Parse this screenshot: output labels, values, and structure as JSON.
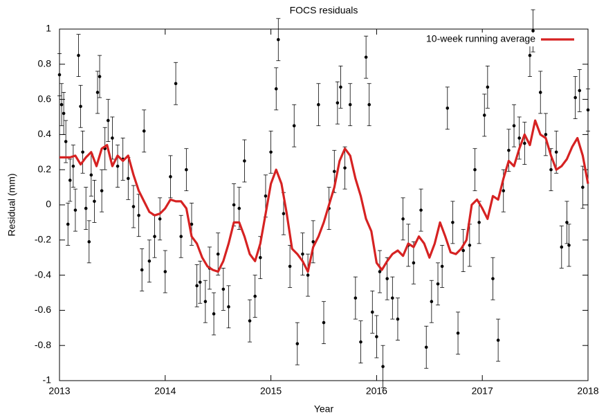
{
  "chart_data": {
    "type": "scatter",
    "title": "FOCS residuals",
    "x_label": "Year",
    "y_label": "Residual (mm)",
    "xlim": [
      2013,
      2018
    ],
    "ylim": [
      -1,
      1
    ],
    "xticks": [
      2013,
      2014,
      2015,
      2016,
      2017,
      2018
    ],
    "yticks": [
      -1,
      -0.8,
      -0.6,
      -0.4,
      -0.2,
      0,
      0.2,
      0.4,
      0.6,
      0.8,
      1
    ],
    "grid": false,
    "legend": "top-right",
    "series": [
      {
        "type": "scatter",
        "color": "#000000",
        "error": 0.12,
        "x": [
          2013.0,
          2013.02,
          2013.04,
          2013.06,
          2013.08,
          2013.1,
          2013.13,
          2013.15,
          2013.18,
          2013.2,
          2013.22,
          2013.25,
          2013.28,
          2013.3,
          2013.33,
          2013.36,
          2013.38,
          2013.4,
          2013.43,
          2013.46,
          2013.5,
          2013.55,
          2013.6,
          2013.65,
          2013.7,
          2013.75,
          2013.78,
          2013.8,
          2013.85,
          2013.9,
          2013.95,
          2014.0,
          2014.05,
          2014.1,
          2014.15,
          2014.2,
          2014.25,
          2014.3,
          2014.33,
          2014.38,
          2014.42,
          2014.46,
          2014.5,
          2014.55,
          2014.6,
          2014.65,
          2014.7,
          2014.75,
          2014.8,
          2014.85,
          2014.9,
          2014.95,
          2015.0,
          2015.05,
          2015.07,
          2015.12,
          2015.18,
          2015.22,
          2015.25,
          2015.3,
          2015.35,
          2015.4,
          2015.45,
          2015.5,
          2015.55,
          2015.6,
          2015.63,
          2015.66,
          2015.7,
          2015.75,
          2015.8,
          2015.85,
          2015.9,
          2015.93,
          2015.96,
          2016.0,
          2016.03,
          2016.06,
          2016.1,
          2016.15,
          2016.2,
          2016.25,
          2016.3,
          2016.35,
          2016.42,
          2016.47,
          2016.52,
          2016.58,
          2016.62,
          2016.67,
          2016.72,
          2016.77,
          2016.82,
          2016.88,
          2016.93,
          2016.97,
          2017.02,
          2017.05,
          2017.1,
          2017.15,
          2017.2,
          2017.25,
          2017.3,
          2017.35,
          2017.4,
          2017.45,
          2017.48,
          2017.55,
          2017.6,
          2017.65,
          2017.7,
          2017.75,
          2017.8,
          2017.82,
          2017.88,
          2017.92,
          2017.95,
          2018.0
        ],
        "values": [
          0.74,
          0.57,
          0.52,
          0.36,
          -0.11,
          0.14,
          0.22,
          -0.03,
          0.85,
          0.56,
          0.3,
          -0.02,
          -0.21,
          0.17,
          0.02,
          0.64,
          0.73,
          0.08,
          0.32,
          0.48,
          0.38,
          0.22,
          0.26,
          0.15,
          -0.01,
          -0.06,
          -0.37,
          0.42,
          -0.32,
          -0.18,
          -0.08,
          -0.38,
          0.16,
          0.69,
          -0.18,
          0.2,
          -0.11,
          -0.46,
          -0.44,
          -0.55,
          -0.36,
          -0.62,
          -0.28,
          -0.48,
          -0.58,
          0.0,
          -0.02,
          0.25,
          -0.66,
          -0.52,
          -0.3,
          0.05,
          0.3,
          0.66,
          0.94,
          -0.05,
          -0.35,
          0.45,
          -0.79,
          -0.28,
          -0.4,
          -0.21,
          0.57,
          -0.67,
          -0.02,
          0.19,
          0.58,
          0.67,
          0.21,
          0.57,
          -0.53,
          -0.78,
          0.84,
          0.57,
          -0.61,
          -0.75,
          -0.38,
          -0.92,
          -0.42,
          -0.53,
          -0.65,
          -0.08,
          -0.23,
          -0.33,
          -0.03,
          -0.81,
          -0.55,
          -0.45,
          -0.35,
          0.55,
          -0.1,
          -0.73,
          -0.26,
          -0.23,
          0.2,
          -0.1,
          0.51,
          0.67,
          -0.42,
          -0.77,
          0.08,
          0.31,
          0.45,
          0.38,
          0.35,
          0.85,
          0.99,
          0.64,
          0.4,
          0.2,
          0.3,
          -0.24,
          -0.1,
          -0.23,
          0.61,
          0.65,
          0.1,
          0.54
        ]
      },
      {
        "type": "line",
        "name": "10-week running average",
        "color": "#d62222",
        "x": [
          2013.0,
          2013.05,
          2013.1,
          2013.15,
          2013.2,
          2013.25,
          2013.3,
          2013.35,
          2013.4,
          2013.45,
          2013.5,
          2013.55,
          2013.6,
          2013.65,
          2013.7,
          2013.75,
          2013.8,
          2013.85,
          2013.9,
          2013.95,
          2014.0,
          2014.05,
          2014.1,
          2014.15,
          2014.2,
          2014.25,
          2014.3,
          2014.35,
          2014.4,
          2014.45,
          2014.5,
          2014.55,
          2014.6,
          2014.65,
          2014.7,
          2014.75,
          2014.8,
          2014.85,
          2014.9,
          2014.95,
          2015.0,
          2015.05,
          2015.1,
          2015.15,
          2015.2,
          2015.25,
          2015.3,
          2015.35,
          2015.4,
          2015.45,
          2015.5,
          2015.55,
          2015.6,
          2015.65,
          2015.7,
          2015.75,
          2015.8,
          2015.85,
          2015.9,
          2015.95,
          2016.0,
          2016.05,
          2016.1,
          2016.15,
          2016.2,
          2016.25,
          2016.3,
          2016.35,
          2016.4,
          2016.45,
          2016.5,
          2016.55,
          2016.6,
          2016.65,
          2016.7,
          2016.75,
          2016.8,
          2016.85,
          2016.9,
          2016.95,
          2017.0,
          2017.05,
          2017.1,
          2017.15,
          2017.2,
          2017.25,
          2017.3,
          2017.35,
          2017.4,
          2017.45,
          2017.5,
          2017.55,
          2017.6,
          2017.65,
          2017.7,
          2017.75,
          2017.8,
          2017.85,
          2017.9,
          2017.95,
          2018.0
        ],
        "values": [
          0.27,
          0.27,
          0.27,
          0.28,
          0.23,
          0.27,
          0.3,
          0.22,
          0.32,
          0.34,
          0.22,
          0.28,
          0.25,
          0.28,
          0.17,
          0.08,
          0.02,
          -0.04,
          -0.06,
          -0.05,
          -0.02,
          0.03,
          0.02,
          0.02,
          -0.02,
          -0.18,
          -0.22,
          -0.3,
          -0.35,
          -0.37,
          -0.38,
          -0.32,
          -0.22,
          -0.1,
          -0.1,
          -0.18,
          -0.28,
          -0.32,
          -0.22,
          -0.05,
          0.12,
          0.2,
          0.12,
          -0.05,
          -0.25,
          -0.28,
          -0.32,
          -0.38,
          -0.24,
          -0.18,
          -0.1,
          0.0,
          0.1,
          0.25,
          0.32,
          0.28,
          0.15,
          0.05,
          -0.08,
          -0.15,
          -0.33,
          -0.37,
          -0.32,
          -0.28,
          -0.26,
          -0.29,
          -0.22,
          -0.24,
          -0.18,
          -0.22,
          -0.3,
          -0.22,
          -0.1,
          -0.18,
          -0.27,
          -0.28,
          -0.25,
          -0.2,
          0.0,
          0.03,
          -0.02,
          -0.08,
          0.05,
          0.03,
          0.15,
          0.25,
          0.22,
          0.32,
          0.4,
          0.34,
          0.48,
          0.4,
          0.38,
          0.28,
          0.2,
          0.22,
          0.26,
          0.33,
          0.38,
          0.28,
          0.12
        ]
      }
    ]
  }
}
